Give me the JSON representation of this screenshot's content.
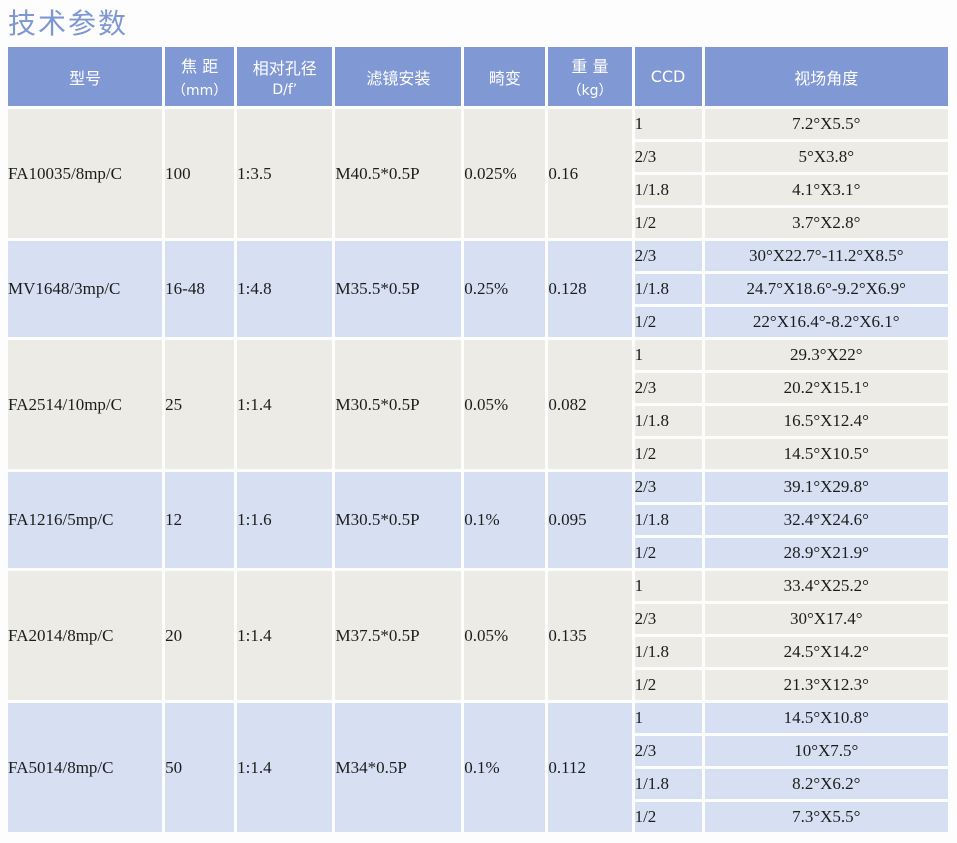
{
  "page_title": "技术参数",
  "table": {
    "headers": {
      "model": "型号",
      "focal_line1": "焦  距",
      "focal_line2": "（mm）",
      "aperture_line1": "相对孔径",
      "aperture_line2": "D/f’",
      "filter": "滤镜安装",
      "distortion": "畸变",
      "weight_line1": "重  量",
      "weight_line2": "（kg）",
      "ccd": "CCD",
      "fov": "视场角度"
    },
    "groups": [
      {
        "model": "FA10035/8mp/C",
        "focal": "100",
        "aperture": "1:3.5",
        "filter": "M40.5*0.5P",
        "distortion": "0.025%",
        "weight": "0.16",
        "rows": [
          {
            "ccd": "1",
            "fov": "7.2°X5.5°"
          },
          {
            "ccd": "2/3",
            "fov": "5°X3.8°"
          },
          {
            "ccd": "1/1.8",
            "fov": "4.1°X3.1°"
          },
          {
            "ccd": "1/2",
            "fov": "3.7°X2.8°"
          }
        ]
      },
      {
        "model": "MV1648/3mp/C",
        "focal": "16-48",
        "aperture": "1:4.8",
        "filter": "M35.5*0.5P",
        "distortion": "0.25%",
        "weight": "0.128",
        "rows": [
          {
            "ccd": "2/3",
            "fov": "30°X22.7°-11.2°X8.5°"
          },
          {
            "ccd": "1/1.8",
            "fov": "24.7°X18.6°-9.2°X6.9°"
          },
          {
            "ccd": "1/2",
            "fov": "22°X16.4°-8.2°X6.1°"
          }
        ]
      },
      {
        "model": "FA2514/10mp/C",
        "focal": "25",
        "aperture": "1:1.4",
        "filter": "M30.5*0.5P",
        "distortion": "0.05%",
        "weight": "0.082",
        "rows": [
          {
            "ccd": "1",
            "fov": "29.3°X22°"
          },
          {
            "ccd": "2/3",
            "fov": "20.2°X15.1°"
          },
          {
            "ccd": "1/1.8",
            "fov": "16.5°X12.4°"
          },
          {
            "ccd": "1/2",
            "fov": "14.5°X10.5°"
          }
        ]
      },
      {
        "model": "FA1216/5mp/C",
        "focal": "12",
        "aperture": "1:1.6",
        "filter": "M30.5*0.5P",
        "distortion": "0.1%",
        "weight": "0.095",
        "rows": [
          {
            "ccd": "2/3",
            "fov": "39.1°X29.8°"
          },
          {
            "ccd": "1/1.8",
            "fov": "32.4°X24.6°"
          },
          {
            "ccd": "1/2",
            "fov": "28.9°X21.9°"
          }
        ]
      },
      {
        "model": "FA2014/8mp/C",
        "focal": "20",
        "aperture": "1:1.4",
        "filter": "M37.5*0.5P",
        "distortion": "0.05%",
        "weight": "0.135",
        "rows": [
          {
            "ccd": "1",
            "fov": "33.4°X25.2°"
          },
          {
            "ccd": "2/3",
            "fov": "30°X17.4°"
          },
          {
            "ccd": "1/1.8",
            "fov": "24.5°X14.2°"
          },
          {
            "ccd": "1/2",
            "fov": "21.3°X12.3°"
          }
        ]
      },
      {
        "model": "FA5014/8mp/C",
        "focal": "50",
        "aperture": "1:1.4",
        "filter": "M34*0.5P",
        "distortion": "0.1%",
        "weight": "0.112",
        "rows": [
          {
            "ccd": "1",
            "fov": "14.5°X10.8°"
          },
          {
            "ccd": "2/3",
            "fov": "10°X7.5°"
          },
          {
            "ccd": "1/1.8",
            "fov": "8.2°X6.2°"
          },
          {
            "ccd": "1/2",
            "fov": "7.3°X5.5°"
          }
        ]
      }
    ]
  },
  "colors": {
    "header_bg": "#8098d3",
    "title_text": "#7e97d3",
    "row_gray": "#ecebe6",
    "row_blue": "#d7e0f2",
    "body_text": "#1c1c1c"
  }
}
